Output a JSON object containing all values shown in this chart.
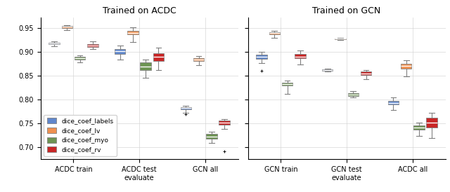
{
  "left_title": "Trained on ACDC",
  "right_title": "Trained on GCN",
  "colors": {
    "labels": "#4472C4",
    "lv": "#ED7D31",
    "myo": "#548235",
    "rv": "#C00000"
  },
  "legend_labels": [
    "dice_coef_labels",
    "dice_coef_lv",
    "dice_coef_myo",
    "dice_coef_rv"
  ],
  "left_xtick_labels": [
    "ACDC train",
    "ACDC test\nevaluate",
    "GCN all"
  ],
  "right_xtick_labels": [
    "GCN train",
    "GCN test\nevaluate",
    "ACDC all"
  ],
  "ylim": [
    0.675,
    0.972
  ],
  "yticks": [
    0.7,
    0.75,
    0.8,
    0.85,
    0.9,
    0.95
  ],
  "left_boxes": {
    "ACDC_train": {
      "labels": {
        "q1": 0.9155,
        "med": 0.9175,
        "q3": 0.9195,
        "whislo": 0.912,
        "whishi": 0.922,
        "fliers": []
      },
      "lv": {
        "q1": 0.95,
        "med": 0.952,
        "q3": 0.954,
        "whislo": 0.945,
        "whishi": 0.956,
        "fliers": []
      },
      "myo": {
        "q1": 0.884,
        "med": 0.887,
        "q3": 0.89,
        "whislo": 0.878,
        "whishi": 0.893,
        "fliers": []
      },
      "rv": {
        "q1": 0.91,
        "med": 0.913,
        "q3": 0.916,
        "whislo": 0.905,
        "whishi": 0.921,
        "fliers": []
      }
    },
    "ACDC_test": {
      "labels": {
        "q1": 0.896,
        "med": 0.901,
        "q3": 0.906,
        "whislo": 0.884,
        "whishi": 0.913,
        "fliers": []
      },
      "lv": {
        "q1": 0.936,
        "med": 0.94,
        "q3": 0.943,
        "whislo": 0.92,
        "whishi": 0.951,
        "fliers": []
      },
      "myo": {
        "q1": 0.862,
        "med": 0.869,
        "q3": 0.878,
        "whislo": 0.845,
        "whishi": 0.883,
        "fliers": []
      },
      "rv": {
        "q1": 0.881,
        "med": 0.889,
        "q3": 0.897,
        "whislo": 0.862,
        "whishi": 0.909,
        "fliers": []
      }
    },
    "GCN_all": {
      "labels": {
        "q1": 0.779,
        "med": 0.782,
        "q3": 0.784,
        "whislo": 0.773,
        "whishi": 0.787,
        "fliers": [
          0.77
        ]
      },
      "lv": {
        "q1": 0.88,
        "med": 0.883,
        "q3": 0.886,
        "whislo": 0.872,
        "whishi": 0.891,
        "fliers": []
      },
      "myo": {
        "q1": 0.718,
        "med": 0.723,
        "q3": 0.728,
        "whislo": 0.71,
        "whishi": 0.733,
        "fliers": []
      },
      "rv": {
        "q1": 0.748,
        "med": 0.752,
        "q3": 0.756,
        "whislo": 0.738,
        "whishi": 0.759,
        "fliers": [
          0.691
        ]
      }
    }
  },
  "right_boxes": {
    "GCN_train": {
      "labels": {
        "q1": 0.885,
        "med": 0.89,
        "q3": 0.894,
        "whislo": 0.876,
        "whishi": 0.899,
        "fliers": [
          0.86
        ]
      },
      "lv": {
        "q1": 0.936,
        "med": 0.939,
        "q3": 0.941,
        "whislo": 0.929,
        "whishi": 0.943,
        "fliers": []
      },
      "myo": {
        "q1": 0.829,
        "med": 0.833,
        "q3": 0.836,
        "whislo": 0.812,
        "whishi": 0.84,
        "fliers": []
      },
      "rv": {
        "q1": 0.886,
        "med": 0.89,
        "q3": 0.895,
        "whislo": 0.873,
        "whishi": 0.902,
        "fliers": []
      }
    },
    "GCN_test": {
      "labels": {
        "q1": 0.86,
        "med": 0.861,
        "q3": 0.863,
        "whislo": 0.858,
        "whishi": 0.865,
        "fliers": []
      },
      "lv": {
        "q1": 0.926,
        "med": 0.927,
        "q3": 0.928,
        "whislo": 0.924,
        "whishi": 0.929,
        "fliers": []
      },
      "myo": {
        "q1": 0.808,
        "med": 0.811,
        "q3": 0.814,
        "whislo": 0.804,
        "whishi": 0.817,
        "fliers": []
      },
      "rv": {
        "q1": 0.851,
        "med": 0.855,
        "q3": 0.858,
        "whislo": 0.843,
        "whishi": 0.862,
        "fliers": []
      }
    },
    "ACDC_all": {
      "labels": {
        "q1": 0.79,
        "med": 0.793,
        "q3": 0.797,
        "whislo": 0.778,
        "whishi": 0.804,
        "fliers": []
      },
      "lv": {
        "q1": 0.865,
        "med": 0.87,
        "q3": 0.875,
        "whislo": 0.849,
        "whishi": 0.882,
        "fliers": []
      },
      "myo": {
        "q1": 0.737,
        "med": 0.741,
        "q3": 0.746,
        "whislo": 0.724,
        "whishi": 0.752,
        "fliers": []
      },
      "rv": {
        "q1": 0.742,
        "med": 0.752,
        "q3": 0.762,
        "whislo": 0.72,
        "whishi": 0.773,
        "fliers": []
      }
    }
  }
}
